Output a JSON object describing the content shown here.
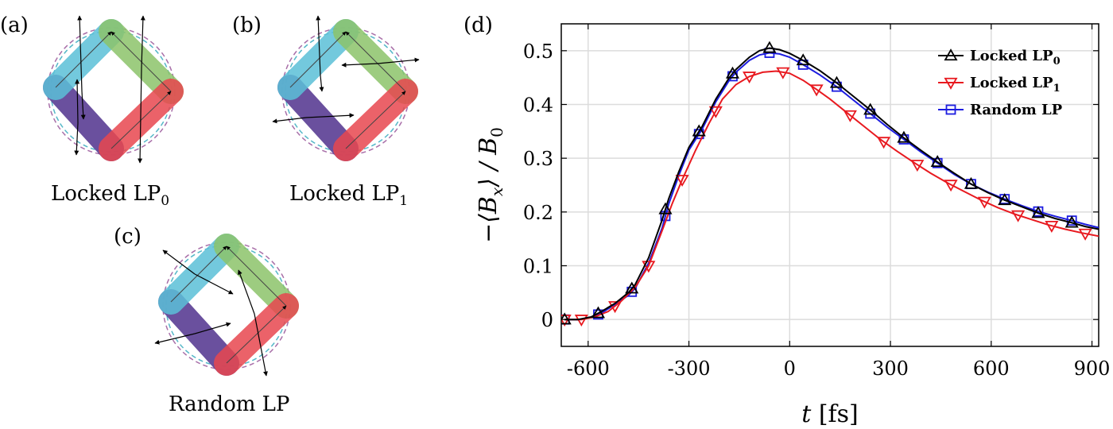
{
  "panels": {
    "a": {
      "label": "(a)",
      "caption": "Locked LP",
      "caption_sub": "0"
    },
    "b": {
      "label": "(b)",
      "caption": "Locked LP",
      "caption_sub": "1"
    },
    "c": {
      "label": "(c)",
      "caption": "Random LP",
      "caption_sub": ""
    },
    "d": {
      "label": "(d)"
    }
  },
  "segment_colors": {
    "blue": "#5bc0d8",
    "green": "#8cc46a",
    "red": "#e8474f",
    "purple": "#5a3e94",
    "orange": "#f2a24a",
    "dashed_purple": "#a86ea8",
    "dashed_cyan": "#55b8c8",
    "dashed_green": "#69b06a",
    "dashed_red": "#c85858"
  },
  "chart_data": {
    "type": "line",
    "xlabel": "t",
    "xlabel_unit": "[fs]",
    "ylabel": "−⟨B",
    "ylabel_sub": "x",
    "ylabel_tail": "⟩ / B",
    "ylabel_sub2": "0",
    "xlim": [
      -680,
      920
    ],
    "ylim": [
      -0.05,
      0.55
    ],
    "xticks": [
      -600,
      -300,
      0,
      300,
      600,
      900
    ],
    "yticks": [
      0,
      0.1,
      0.2,
      0.3,
      0.4,
      0.5
    ],
    "xtick_labels": [
      "-600",
      "-300",
      "0",
      "300",
      "600",
      "900"
    ],
    "ytick_labels": [
      "0",
      "0.1",
      "0.2",
      "0.3",
      "0.4",
      "0.5"
    ],
    "grid": true,
    "legend_position": "top-right",
    "series": [
      {
        "name": "Locked LP",
        "name_sub": "0",
        "color": "#000000",
        "marker": "triangle-up",
        "x": [
          -670,
          -630,
          -590,
          -560,
          -520,
          -480,
          -460,
          -420,
          -380,
          -360,
          -330,
          -300,
          -260,
          -220,
          -180,
          -160,
          -120,
          -90,
          -60,
          -30,
          0,
          40,
          90,
          140,
          190,
          240,
          290,
          340,
          390,
          440,
          490,
          540,
          590,
          640,
          690,
          740,
          790,
          840,
          880,
          920
        ],
        "y": [
          0,
          0,
          0.005,
          0.015,
          0.03,
          0.05,
          0.065,
          0.115,
          0.185,
          0.225,
          0.275,
          0.32,
          0.36,
          0.41,
          0.45,
          0.465,
          0.488,
          0.5,
          0.505,
          0.502,
          0.495,
          0.482,
          0.463,
          0.44,
          0.415,
          0.39,
          0.363,
          0.338,
          0.315,
          0.293,
          0.272,
          0.252,
          0.236,
          0.222,
          0.21,
          0.198,
          0.188,
          0.18,
          0.173,
          0.168
        ],
        "marker_x": [
          -670,
          -570,
          -470,
          -370,
          -270,
          -170,
          -60,
          40,
          140,
          240,
          340,
          440,
          540,
          640,
          740,
          840
        ]
      },
      {
        "name": "Locked LP",
        "name_sub": "1",
        "color": "#e8191f",
        "marker": "triangle-down",
        "x": [
          -670,
          -620,
          -580,
          -540,
          -500,
          -460,
          -420,
          -380,
          -350,
          -320,
          -280,
          -240,
          -200,
          -160,
          -120,
          -80,
          -40,
          0,
          40,
          80,
          120,
          170,
          220,
          270,
          320,
          370,
          420,
          470,
          520,
          570,
          620,
          670,
          720,
          770,
          820,
          870,
          920
        ],
        "y": [
          0,
          0,
          0.005,
          0.015,
          0.035,
          0.06,
          0.1,
          0.165,
          0.215,
          0.26,
          0.315,
          0.365,
          0.41,
          0.437,
          0.452,
          0.46,
          0.462,
          0.458,
          0.445,
          0.428,
          0.41,
          0.385,
          0.36,
          0.335,
          0.313,
          0.292,
          0.272,
          0.254,
          0.238,
          0.222,
          0.208,
          0.196,
          0.186,
          0.176,
          0.168,
          0.161,
          0.155
        ],
        "marker_x": [
          -670,
          -620,
          -520,
          -420,
          -320,
          -220,
          -120,
          -20,
          80,
          180,
          280,
          380,
          480,
          580,
          680,
          780,
          880
        ]
      },
      {
        "name": "Random LP",
        "name_sub": "",
        "color": "#1c1ce0",
        "marker": "square",
        "x": [
          -670,
          -630,
          -590,
          -560,
          -520,
          -480,
          -460,
          -420,
          -380,
          -360,
          -330,
          -300,
          -260,
          -220,
          -180,
          -160,
          -120,
          -90,
          -60,
          -30,
          0,
          40,
          90,
          140,
          190,
          240,
          290,
          340,
          390,
          440,
          490,
          540,
          590,
          640,
          690,
          740,
          790,
          840,
          880,
          920
        ],
        "y": [
          0,
          0,
          0.004,
          0.012,
          0.028,
          0.045,
          0.058,
          0.105,
          0.17,
          0.215,
          0.268,
          0.315,
          0.355,
          0.405,
          0.445,
          0.46,
          0.482,
          0.492,
          0.496,
          0.494,
          0.488,
          0.474,
          0.455,
          0.433,
          0.408,
          0.383,
          0.358,
          0.335,
          0.312,
          0.291,
          0.27,
          0.252,
          0.237,
          0.224,
          0.212,
          0.201,
          0.192,
          0.184,
          0.177,
          0.171
        ],
        "marker_x": [
          -670,
          -570,
          -470,
          -370,
          -270,
          -170,
          -60,
          40,
          140,
          240,
          340,
          440,
          540,
          640,
          740,
          840
        ]
      }
    ]
  }
}
